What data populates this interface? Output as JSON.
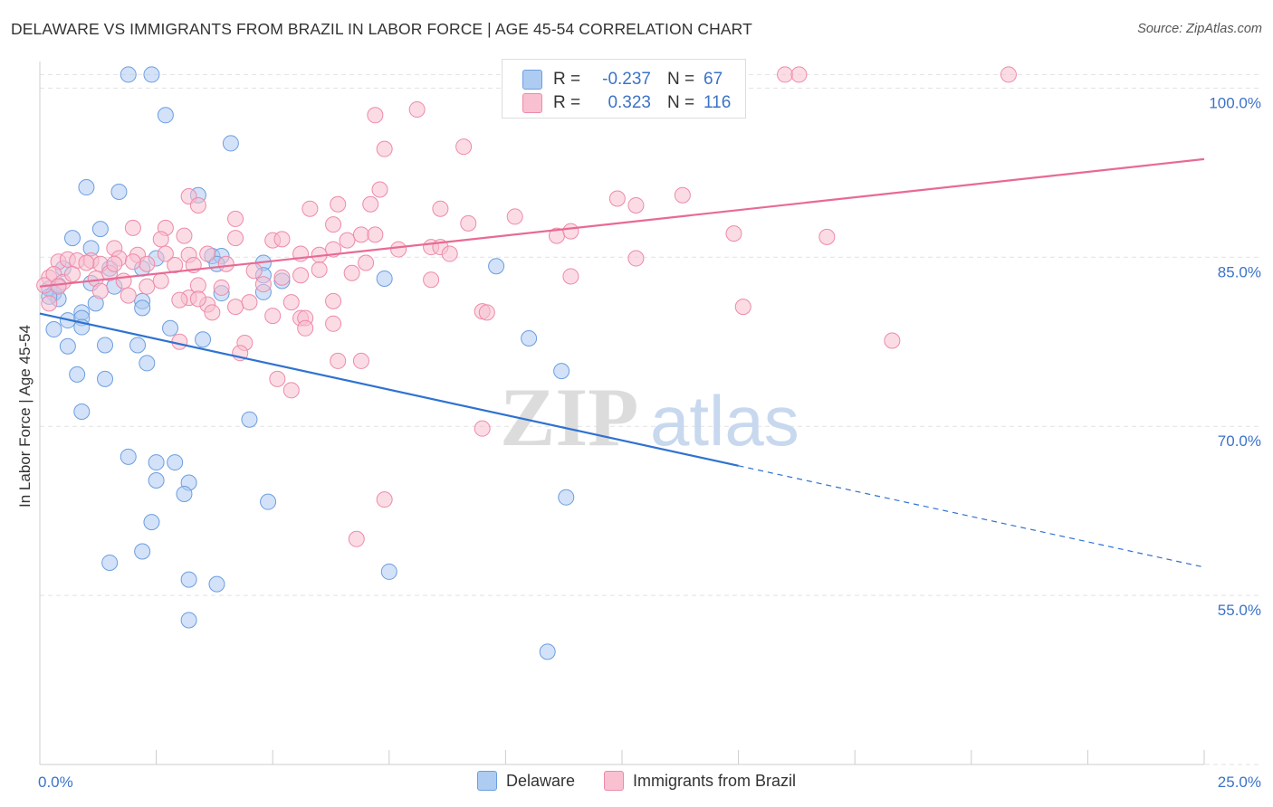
{
  "title": "DELAWARE VS IMMIGRANTS FROM BRAZIL IN LABOR FORCE | AGE 45-54 CORRELATION CHART",
  "source": "Source: ZipAtlas.com",
  "watermark": {
    "zip": "ZIP",
    "atlas": "atlas"
  },
  "legend": {
    "r_label": "R =",
    "n_label": "N =",
    "rows": [
      {
        "r": "-0.237",
        "n": "67",
        "color": "#aecbf2",
        "border": "#6b9ee0"
      },
      {
        "r": "0.323",
        "n": "116",
        "color": "#f8c0d0",
        "border": "#ee8aa8"
      }
    ]
  },
  "bottom_legend": [
    "Delaware",
    "Immigrants from Brazil"
  ],
  "chart_data": {
    "type": "scatter",
    "title": "DELAWARE VS IMMIGRANTS FROM BRAZIL IN LABOR FORCE | AGE 45-54 CORRELATION CHART",
    "xlabel": "",
    "ylabel": "In Labor Force | Age 45-54",
    "xlim": [
      0,
      25
    ],
    "ylim": [
      40,
      103
    ],
    "x_tick_labels": [
      {
        "value": 0,
        "label": "0.0%"
      },
      {
        "value": 25,
        "label": "25.0%"
      }
    ],
    "y_tick_labels": [
      {
        "value": 55,
        "label": "55.0%"
      },
      {
        "value": 70,
        "label": "70.0%"
      },
      {
        "value": 85,
        "label": "85.0%"
      },
      {
        "value": 100,
        "label": "100.0%"
      }
    ],
    "grid": true,
    "legend_position": "top-center",
    "series": [
      {
        "name": "Delaware",
        "color": "#6b9ee0",
        "fill": "#aecbf2",
        "trend": {
          "x_solid": [
            0,
            15
          ],
          "y_solid": [
            80.0,
            66.5
          ],
          "x_dashed": [
            15,
            25
          ],
          "y_dashed": [
            66.5,
            57.5
          ],
          "color": "#2f72d0"
        },
        "points": [
          [
            1.9,
            101.2
          ],
          [
            2.4,
            101.2
          ],
          [
            2.7,
            97.6
          ],
          [
            4.1,
            95.1
          ],
          [
            1.0,
            91.2
          ],
          [
            1.7,
            90.8
          ],
          [
            3.4,
            90.5
          ],
          [
            0.7,
            86.7
          ],
          [
            1.3,
            87.5
          ],
          [
            1.1,
            85.8
          ],
          [
            3.7,
            85.1
          ],
          [
            3.9,
            85.1
          ],
          [
            4.8,
            84.5
          ],
          [
            9.8,
            84.2
          ],
          [
            1.5,
            84.0
          ],
          [
            2.2,
            84.0
          ],
          [
            0.5,
            84.0
          ],
          [
            0.2,
            82.2
          ],
          [
            0.3,
            81.8
          ],
          [
            0.4,
            81.3
          ],
          [
            0.2,
            81.5
          ],
          [
            1.6,
            82.4
          ],
          [
            2.2,
            81.1
          ],
          [
            3.9,
            81.8
          ],
          [
            4.8,
            81.9
          ],
          [
            7.4,
            83.1
          ],
          [
            0.9,
            80.1
          ],
          [
            1.2,
            80.9
          ],
          [
            0.6,
            79.4
          ],
          [
            0.9,
            79.6
          ],
          [
            0.3,
            78.6
          ],
          [
            0.9,
            78.8
          ],
          [
            2.2,
            80.5
          ],
          [
            2.8,
            78.7
          ],
          [
            0.6,
            77.1
          ],
          [
            1.4,
            77.2
          ],
          [
            2.1,
            77.2
          ],
          [
            3.5,
            77.7
          ],
          [
            10.5,
            77.8
          ],
          [
            0.8,
            74.6
          ],
          [
            1.4,
            74.2
          ],
          [
            2.3,
            75.6
          ],
          [
            11.2,
            74.9
          ],
          [
            0.9,
            71.3
          ],
          [
            4.5,
            70.6
          ],
          [
            1.9,
            67.3
          ],
          [
            2.5,
            66.8
          ],
          [
            2.9,
            66.8
          ],
          [
            2.5,
            65.2
          ],
          [
            3.2,
            65.0
          ],
          [
            3.1,
            64.0
          ],
          [
            4.9,
            63.3
          ],
          [
            11.3,
            63.7
          ],
          [
            2.4,
            61.5
          ],
          [
            2.2,
            58.9
          ],
          [
            1.5,
            57.9
          ],
          [
            3.2,
            56.4
          ],
          [
            3.8,
            56.0
          ],
          [
            7.5,
            57.1
          ],
          [
            3.2,
            52.8
          ],
          [
            10.9,
            50.0
          ],
          [
            4.8,
            83.4
          ],
          [
            2.5,
            84.9
          ],
          [
            1.1,
            82.7
          ],
          [
            5.2,
            82.9
          ],
          [
            3.8,
            84.4
          ],
          [
            0.4,
            82.5
          ]
        ]
      },
      {
        "name": "Immigrants from Brazil",
        "color": "#ee8aa8",
        "fill": "#f8c0d0",
        "trend": {
          "x_solid": [
            0,
            25
          ],
          "y_solid": [
            82.4,
            93.7
          ],
          "color": "#e86a94"
        },
        "points": [
          [
            11.6,
            101.2
          ],
          [
            13.8,
            101.2
          ],
          [
            16.0,
            101.2
          ],
          [
            16.3,
            101.2
          ],
          [
            20.8,
            101.2
          ],
          [
            7.2,
            97.6
          ],
          [
            8.1,
            98.1
          ],
          [
            7.4,
            94.6
          ],
          [
            9.1,
            94.8
          ],
          [
            7.3,
            91.0
          ],
          [
            3.2,
            90.4
          ],
          [
            7.1,
            89.7
          ],
          [
            5.8,
            89.3
          ],
          [
            6.4,
            89.7
          ],
          [
            8.6,
            89.3
          ],
          [
            10.2,
            88.6
          ],
          [
            3.4,
            89.6
          ],
          [
            12.4,
            90.2
          ],
          [
            12.8,
            89.6
          ],
          [
            13.8,
            90.5
          ],
          [
            4.2,
            88.4
          ],
          [
            9.2,
            88.0
          ],
          [
            6.3,
            87.9
          ],
          [
            2.0,
            87.6
          ],
          [
            2.7,
            87.6
          ],
          [
            2.6,
            86.6
          ],
          [
            3.1,
            86.9
          ],
          [
            4.2,
            86.7
          ],
          [
            5.0,
            86.5
          ],
          [
            6.6,
            86.5
          ],
          [
            6.9,
            87.0
          ],
          [
            7.2,
            87.0
          ],
          [
            11.1,
            86.9
          ],
          [
            11.4,
            87.3
          ],
          [
            14.9,
            87.1
          ],
          [
            16.9,
            86.8
          ],
          [
            1.6,
            85.8
          ],
          [
            2.1,
            85.2
          ],
          [
            2.7,
            85.3
          ],
          [
            3.2,
            85.2
          ],
          [
            3.6,
            85.3
          ],
          [
            5.6,
            85.3
          ],
          [
            6.0,
            85.2
          ],
          [
            6.3,
            85.7
          ],
          [
            7.7,
            85.7
          ],
          [
            8.4,
            85.9
          ],
          [
            8.6,
            85.9
          ],
          [
            8.8,
            85.3
          ],
          [
            12.8,
            84.9
          ],
          [
            0.4,
            84.6
          ],
          [
            0.6,
            84.8
          ],
          [
            0.8,
            84.7
          ],
          [
            1.1,
            84.7
          ],
          [
            1.3,
            84.4
          ],
          [
            1.7,
            84.9
          ],
          [
            2.3,
            84.4
          ],
          [
            2.9,
            84.3
          ],
          [
            3.3,
            84.3
          ],
          [
            4.0,
            84.4
          ],
          [
            4.6,
            83.8
          ],
          [
            5.2,
            83.2
          ],
          [
            5.6,
            83.4
          ],
          [
            6.0,
            83.9
          ],
          [
            6.7,
            83.6
          ],
          [
            8.4,
            83.0
          ],
          [
            11.4,
            83.3
          ],
          [
            0.2,
            83.2
          ],
          [
            0.3,
            83.5
          ],
          [
            0.5,
            82.8
          ],
          [
            0.7,
            83.5
          ],
          [
            1.2,
            83.1
          ],
          [
            1.5,
            83.6
          ],
          [
            1.8,
            82.9
          ],
          [
            2.3,
            82.4
          ],
          [
            2.6,
            82.9
          ],
          [
            3.4,
            82.5
          ],
          [
            3.9,
            82.3
          ],
          [
            4.8,
            82.6
          ],
          [
            1.3,
            82.0
          ],
          [
            1.9,
            81.6
          ],
          [
            3.2,
            81.4
          ],
          [
            3.6,
            80.8
          ],
          [
            4.5,
            81.0
          ],
          [
            5.4,
            81.0
          ],
          [
            6.3,
            81.1
          ],
          [
            9.5,
            80.2
          ],
          [
            9.6,
            80.1
          ],
          [
            15.1,
            80.6
          ],
          [
            3.0,
            81.2
          ],
          [
            3.4,
            81.3
          ],
          [
            5.6,
            79.6
          ],
          [
            5.7,
            79.6
          ],
          [
            6.3,
            79.1
          ],
          [
            3.7,
            80.1
          ],
          [
            4.2,
            80.6
          ],
          [
            0.2,
            80.9
          ],
          [
            3.0,
            77.5
          ],
          [
            4.4,
            77.4
          ],
          [
            4.3,
            76.5
          ],
          [
            5.7,
            78.7
          ],
          [
            6.4,
            75.8
          ],
          [
            6.9,
            75.8
          ],
          [
            18.3,
            77.6
          ],
          [
            5.1,
            74.2
          ],
          [
            5.4,
            73.2
          ],
          [
            9.5,
            69.8
          ],
          [
            7.4,
            63.5
          ],
          [
            6.8,
            60.0
          ],
          [
            0.1,
            82.5
          ],
          [
            0.4,
            82.4
          ],
          [
            1.0,
            84.5
          ],
          [
            1.6,
            84.4
          ],
          [
            2.0,
            84.6
          ],
          [
            5.2,
            86.6
          ],
          [
            7.0,
            84.5
          ],
          [
            5.0,
            79.8
          ]
        ]
      }
    ]
  }
}
